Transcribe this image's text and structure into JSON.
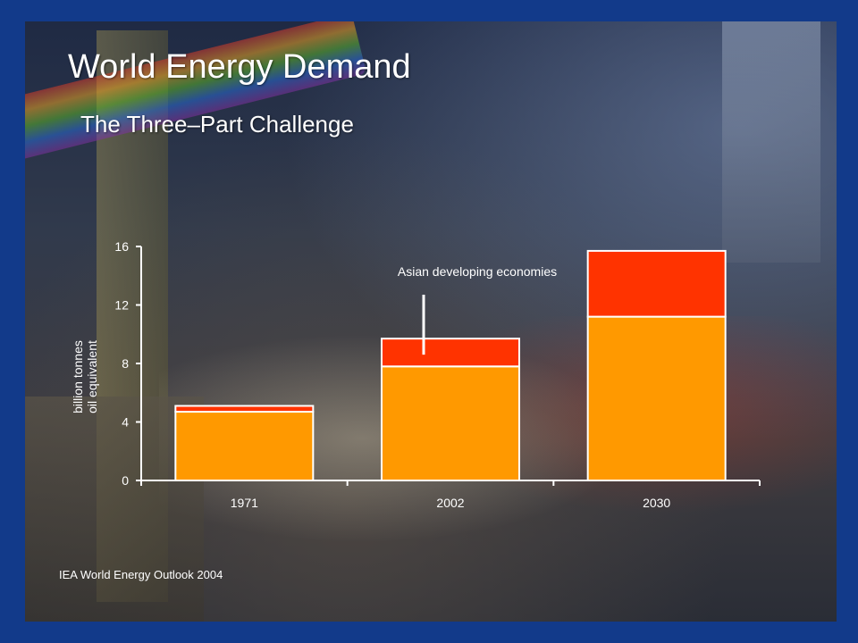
{
  "slide": {
    "title": "World Energy Demand",
    "subtitle": "The Three–Part Challenge",
    "source": "IEA World Energy Outlook 2004"
  },
  "colors": {
    "frame": "#123a8a",
    "bar_base": "#ff9900",
    "bar_top": "#ff3300",
    "text": "#ffffff"
  },
  "chart_data": {
    "type": "bar",
    "stacked": true,
    "categories": [
      "1971",
      "2002",
      "2030"
    ],
    "series": [
      {
        "values": [
          4.7,
          7.8,
          11.2
        ]
      },
      {
        "name": "Asian developing economies",
        "values": [
          0.4,
          1.9,
          4.5
        ]
      }
    ],
    "ylabel": "billion tonnes oil equivalent",
    "ylabel_lines": [
      "billion tonnes",
      "oil equivalent"
    ],
    "ylim": [
      0,
      16
    ],
    "yticks": [
      0,
      4,
      8,
      12,
      16
    ],
    "annotation": {
      "text": "Asian developing economies",
      "category": "2002"
    },
    "grid": false,
    "legend": "none"
  }
}
